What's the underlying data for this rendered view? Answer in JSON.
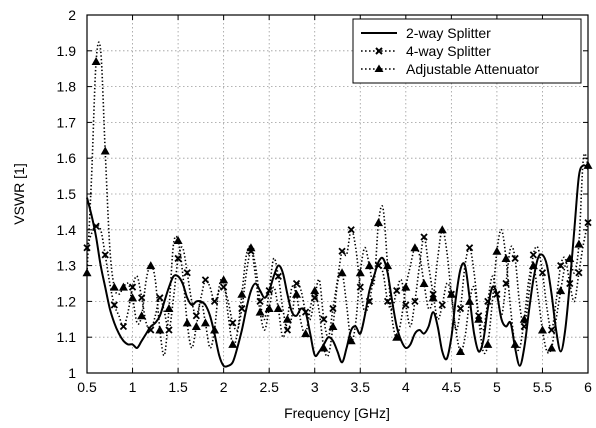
{
  "chart_data": {
    "type": "line",
    "title": "",
    "xlabel": "Frequency [GHz]",
    "ylabel": "VSWR [1]",
    "xlim": [
      0.5,
      6
    ],
    "ylim": [
      1,
      2
    ],
    "x_ticks": [
      "0.5",
      "1",
      "1.5",
      "2",
      "2.5",
      "3",
      "3.5",
      "4",
      "4.5",
      "5",
      "5.5",
      "6"
    ],
    "y_ticks": [
      "1",
      "1.1",
      "1.2",
      "1.3",
      "1.4",
      "1.5",
      "1.6",
      "1.7",
      "1.8",
      "1.9",
      "2"
    ],
    "grid": true,
    "legend_position": "top-right",
    "series": [
      {
        "name": "2-way Splitter",
        "style": "solid",
        "color": "#000000",
        "x": [
          0.5,
          0.55,
          0.6,
          0.65,
          0.7,
          0.75,
          0.8,
          0.85,
          0.9,
          0.95,
          1.0,
          1.05,
          1.1,
          1.15,
          1.2,
          1.25,
          1.3,
          1.35,
          1.4,
          1.45,
          1.5,
          1.55,
          1.6,
          1.65,
          1.7,
          1.75,
          1.8,
          1.85,
          1.9,
          1.95,
          2.0,
          2.05,
          2.1,
          2.15,
          2.2,
          2.25,
          2.3,
          2.35,
          2.4,
          2.45,
          2.5,
          2.55,
          2.6,
          2.65,
          2.7,
          2.75,
          2.8,
          2.85,
          2.9,
          2.95,
          3.0,
          3.05,
          3.1,
          3.15,
          3.2,
          3.25,
          3.3,
          3.35,
          3.4,
          3.45,
          3.5,
          3.55,
          3.6,
          3.65,
          3.7,
          3.75,
          3.8,
          3.85,
          3.9,
          3.95,
          4.0,
          4.05,
          4.1,
          4.15,
          4.2,
          4.25,
          4.3,
          4.35,
          4.4,
          4.45,
          4.5,
          4.55,
          4.6,
          4.65,
          4.7,
          4.75,
          4.8,
          4.85,
          4.9,
          4.95,
          5.0,
          5.05,
          5.1,
          5.15,
          5.2,
          5.25,
          5.3,
          5.35,
          5.4,
          5.45,
          5.5,
          5.55,
          5.6,
          5.65,
          5.7,
          5.75,
          5.8,
          5.85,
          5.9,
          5.95,
          6.0
        ],
        "y": [
          1.49,
          1.44,
          1.38,
          1.3,
          1.24,
          1.18,
          1.14,
          1.11,
          1.09,
          1.08,
          1.08,
          1.07,
          1.09,
          1.11,
          1.13,
          1.14,
          1.16,
          1.2,
          1.24,
          1.27,
          1.27,
          1.25,
          1.21,
          1.19,
          1.2,
          1.2,
          1.19,
          1.16,
          1.11,
          1.05,
          1.02,
          1.02,
          1.03,
          1.07,
          1.12,
          1.18,
          1.23,
          1.25,
          1.23,
          1.21,
          1.23,
          1.27,
          1.3,
          1.28,
          1.22,
          1.17,
          1.16,
          1.18,
          1.17,
          1.11,
          1.05,
          1.06,
          1.08,
          1.1,
          1.09,
          1.06,
          1.03,
          1.07,
          1.12,
          1.13,
          1.11,
          1.16,
          1.23,
          1.27,
          1.31,
          1.32,
          1.28,
          1.2,
          1.13,
          1.09,
          1.07,
          1.08,
          1.11,
          1.12,
          1.11,
          1.13,
          1.17,
          1.13,
          1.06,
          1.04,
          1.1,
          1.21,
          1.29,
          1.3,
          1.21,
          1.11,
          1.06,
          1.09,
          1.18,
          1.24,
          1.22,
          1.15,
          1.13,
          1.14,
          1.07,
          1.02,
          1.07,
          1.17,
          1.26,
          1.32,
          1.33,
          1.3,
          1.22,
          1.12,
          1.06,
          1.12,
          1.25,
          1.4,
          1.55,
          1.58,
          1.57
        ]
      },
      {
        "name": "4-way Splitter",
        "style": "dotted",
        "marker": "x",
        "color": "#000000",
        "x": [
          0.5,
          0.55,
          0.6,
          0.65,
          0.7,
          0.75,
          0.8,
          0.85,
          0.9,
          0.95,
          1.0,
          1.05,
          1.1,
          1.15,
          1.2,
          1.25,
          1.3,
          1.35,
          1.4,
          1.45,
          1.5,
          1.55,
          1.6,
          1.65,
          1.7,
          1.75,
          1.8,
          1.85,
          1.9,
          1.95,
          2.0,
          2.05,
          2.1,
          2.15,
          2.2,
          2.25,
          2.3,
          2.35,
          2.4,
          2.45,
          2.5,
          2.55,
          2.6,
          2.65,
          2.7,
          2.75,
          2.8,
          2.85,
          2.9,
          2.95,
          3.0,
          3.05,
          3.1,
          3.15,
          3.2,
          3.25,
          3.3,
          3.35,
          3.4,
          3.45,
          3.5,
          3.55,
          3.6,
          3.65,
          3.7,
          3.75,
          3.8,
          3.85,
          3.9,
          3.95,
          4.0,
          4.05,
          4.1,
          4.15,
          4.2,
          4.25,
          4.3,
          4.35,
          4.4,
          4.45,
          4.5,
          4.55,
          4.6,
          4.65,
          4.7,
          4.75,
          4.8,
          4.85,
          4.9,
          4.95,
          5.0,
          5.05,
          5.1,
          5.15,
          5.2,
          5.25,
          5.3,
          5.35,
          5.4,
          5.45,
          5.5,
          5.55,
          5.6,
          5.65,
          5.7,
          5.75,
          5.8,
          5.85,
          5.9,
          5.95,
          6.0
        ],
        "y": [
          1.35,
          1.39,
          1.41,
          1.4,
          1.33,
          1.25,
          1.19,
          1.16,
          1.13,
          1.17,
          1.24,
          1.27,
          1.21,
          1.14,
          1.12,
          1.16,
          1.21,
          1.17,
          1.12,
          1.21,
          1.32,
          1.35,
          1.28,
          1.2,
          1.16,
          1.21,
          1.26,
          1.24,
          1.2,
          1.23,
          1.24,
          1.2,
          1.14,
          1.12,
          1.18,
          1.28,
          1.34,
          1.3,
          1.2,
          1.15,
          1.23,
          1.32,
          1.27,
          1.18,
          1.12,
          1.16,
          1.25,
          1.23,
          1.17,
          1.15,
          1.21,
          1.26,
          1.15,
          1.1,
          1.18,
          1.26,
          1.34,
          1.33,
          1.4,
          1.35,
          1.24,
          1.17,
          1.2,
          1.27,
          1.3,
          1.28,
          1.2,
          1.18,
          1.23,
          1.26,
          1.19,
          1.13,
          1.2,
          1.3,
          1.38,
          1.3,
          1.22,
          1.15,
          1.19,
          1.25,
          1.22,
          1.12,
          1.18,
          1.3,
          1.35,
          1.28,
          1.16,
          1.12,
          1.2,
          1.27,
          1.22,
          1.16,
          1.25,
          1.35,
          1.32,
          1.19,
          1.13,
          1.22,
          1.33,
          1.35,
          1.28,
          1.18,
          1.12,
          1.2,
          1.3,
          1.32,
          1.25,
          1.2,
          1.28,
          1.36,
          1.42
        ]
      },
      {
        "name": "Adjustable Attenuator",
        "style": "dotted",
        "marker": "triangle",
        "color": "#000000",
        "x": [
          0.5,
          0.55,
          0.6,
          0.65,
          0.7,
          0.75,
          0.8,
          0.85,
          0.9,
          0.95,
          1.0,
          1.05,
          1.1,
          1.15,
          1.2,
          1.25,
          1.3,
          1.35,
          1.4,
          1.45,
          1.5,
          1.55,
          1.6,
          1.65,
          1.7,
          1.75,
          1.8,
          1.85,
          1.9,
          1.95,
          2.0,
          2.05,
          2.1,
          2.15,
          2.2,
          2.25,
          2.3,
          2.35,
          2.4,
          2.45,
          2.5,
          2.55,
          2.6,
          2.65,
          2.7,
          2.75,
          2.8,
          2.85,
          2.9,
          2.95,
          3.0,
          3.05,
          3.1,
          3.15,
          3.2,
          3.25,
          3.3,
          3.35,
          3.4,
          3.45,
          3.5,
          3.55,
          3.6,
          3.65,
          3.7,
          3.75,
          3.8,
          3.85,
          3.9,
          3.95,
          4.0,
          4.05,
          4.1,
          4.15,
          4.2,
          4.25,
          4.3,
          4.35,
          4.4,
          4.45,
          4.5,
          4.55,
          4.6,
          4.65,
          4.7,
          4.75,
          4.8,
          4.85,
          4.9,
          4.95,
          5.0,
          5.05,
          5.1,
          5.15,
          5.2,
          5.25,
          5.3,
          5.35,
          5.4,
          5.45,
          5.5,
          5.55,
          5.6,
          5.65,
          5.7,
          5.75,
          5.8,
          5.85,
          5.9,
          5.95,
          6.0
        ],
        "y": [
          1.28,
          1.55,
          1.87,
          1.9,
          1.62,
          1.35,
          1.24,
          1.22,
          1.24,
          1.25,
          1.21,
          1.14,
          1.16,
          1.26,
          1.3,
          1.26,
          1.12,
          1.05,
          1.18,
          1.36,
          1.37,
          1.28,
          1.14,
          1.07,
          1.13,
          1.2,
          1.14,
          1.07,
          1.12,
          1.24,
          1.26,
          1.16,
          1.08,
          1.11,
          1.22,
          1.33,
          1.35,
          1.27,
          1.17,
          1.12,
          1.18,
          1.24,
          1.18,
          1.1,
          1.15,
          1.24,
          1.22,
          1.14,
          1.11,
          1.18,
          1.23,
          1.17,
          1.07,
          1.05,
          1.13,
          1.25,
          1.28,
          1.19,
          1.09,
          1.14,
          1.28,
          1.35,
          1.3,
          1.25,
          1.42,
          1.46,
          1.3,
          1.15,
          1.1,
          1.15,
          1.24,
          1.3,
          1.35,
          1.33,
          1.25,
          1.18,
          1.21,
          1.32,
          1.4,
          1.34,
          1.22,
          1.12,
          1.06,
          1.1,
          1.2,
          1.24,
          1.15,
          1.06,
          1.08,
          1.2,
          1.34,
          1.4,
          1.32,
          1.18,
          1.08,
          1.07,
          1.15,
          1.26,
          1.3,
          1.22,
          1.12,
          1.06,
          1.07,
          1.15,
          1.23,
          1.3,
          1.32,
          1.28,
          1.36,
          1.6,
          1.58
        ]
      }
    ]
  }
}
